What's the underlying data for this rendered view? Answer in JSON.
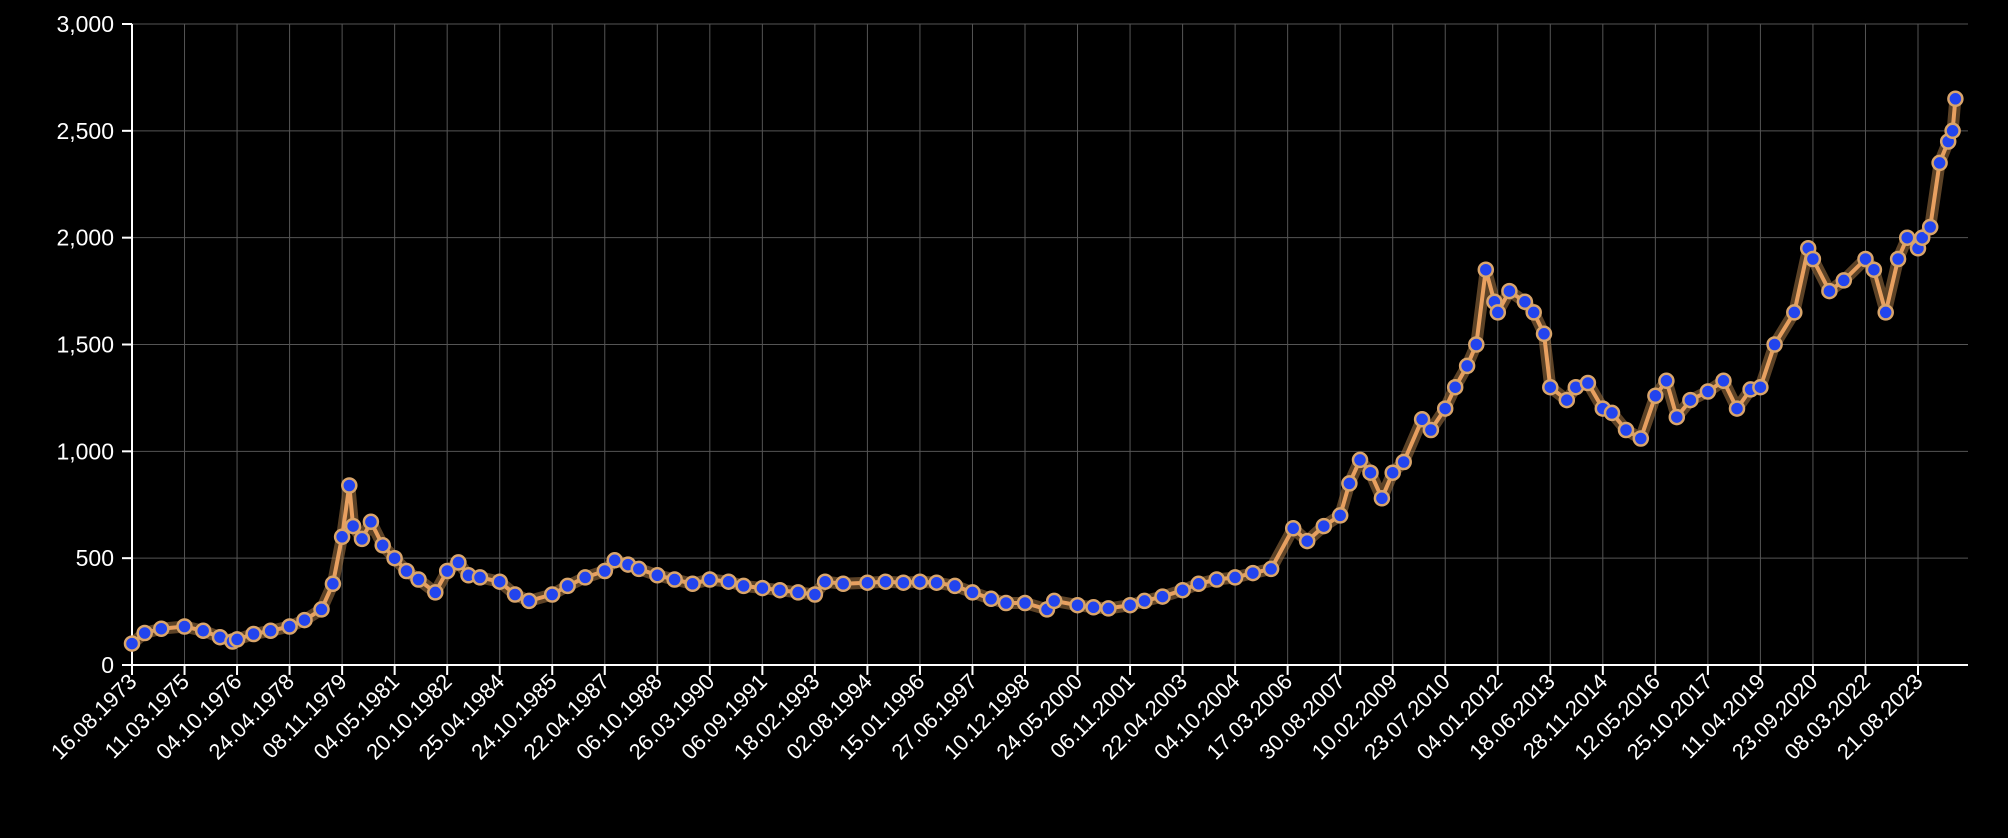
{
  "chart_data": {
    "type": "line",
    "title": "",
    "xlabel": "",
    "ylabel": "",
    "ylim": [
      0,
      3000
    ],
    "grid": true,
    "y_ticks": [
      0,
      500,
      1000,
      1500,
      2000,
      2500,
      3000
    ],
    "y_tick_labels": [
      "0",
      "500",
      "1,000",
      "1,500",
      "2,000",
      "2,500",
      "3,000"
    ],
    "x_tick_labels": [
      "16.08.1973",
      "11.03.1975",
      "04.10.1976",
      "24.04.1978",
      "08.11.1979",
      "04.05.1981",
      "20.10.1982",
      "25.04.1984",
      "24.10.1985",
      "22.04.1987",
      "06.10.1988",
      "26.03.1990",
      "06.09.1991",
      "18.02.1993",
      "02.08.1994",
      "15.01.1996",
      "27.06.1997",
      "10.12.1998",
      "24.05.2000",
      "06.11.2001",
      "22.04.2003",
      "04.10.2004",
      "17.03.2006",
      "30.08.2007",
      "10.02.2009",
      "23.07.2010",
      "04.01.2012",
      "18.06.2013",
      "28.11.2014",
      "12.05.2016",
      "25.10.2017",
      "11.04.2019",
      "23.09.2020",
      "08.03.2022",
      "21.08.2023"
    ],
    "series": [
      {
        "name": "",
        "color": "#e8a060",
        "marker_color": "#2244ee",
        "x": [
          "1973-08-16",
          "1974-01-01",
          "1974-07-01",
          "1975-03-11",
          "1975-10-01",
          "1976-04-01",
          "1976-08-15",
          "1976-10-04",
          "1977-04-01",
          "1977-10-01",
          "1978-04-24",
          "1978-10-01",
          "1979-04-01",
          "1979-08-01",
          "1979-11-08",
          "1980-01-21",
          "1980-03-01",
          "1980-06-01",
          "1980-09-01",
          "1981-01-01",
          "1981-05-04",
          "1981-09-01",
          "1982-01-01",
          "1982-06-21",
          "1982-10-20",
          "1983-02-15",
          "1983-06-01",
          "1983-10-01",
          "1984-04-25",
          "1984-10-01",
          "1985-02-25",
          "1985-10-24",
          "1986-04-01",
          "1986-10-01",
          "1987-04-22",
          "1987-08-01",
          "1987-12-14",
          "1988-04-01",
          "1988-10-06",
          "1989-04-01",
          "1989-10-01",
          "1990-03-26",
          "1990-10-01",
          "1991-03-01",
          "1991-09-06",
          "1992-03-01",
          "1992-09-01",
          "1993-02-18",
          "1993-06-01",
          "1993-12-01",
          "1994-08-02",
          "1995-02-01",
          "1995-08-01",
          "1996-01-15",
          "1996-07-01",
          "1997-01-01",
          "1997-06-27",
          "1998-01-01",
          "1998-06-01",
          "1998-12-10",
          "1999-07-20",
          "1999-10-01",
          "2000-05-24",
          "2000-11-01",
          "2001-04-01",
          "2001-11-06",
          "2002-04-01",
          "2002-10-01",
          "2003-04-22",
          "2003-10-01",
          "2004-04-01",
          "2004-10-04",
          "2005-04-01",
          "2005-10-01",
          "2006-05-12",
          "2006-10-01",
          "2007-03-17",
          "2007-08-30",
          "2007-12-01",
          "2008-03-17",
          "2008-07-01",
          "2008-10-24",
          "2009-02-10",
          "2009-06-01",
          "2009-12-02",
          "2010-03-01",
          "2010-07-23",
          "2010-11-01",
          "2011-03-01",
          "2011-06-01",
          "2011-09-05",
          "2011-12-01",
          "2012-01-04",
          "2012-05-01",
          "2012-10-04",
          "2013-01-01",
          "2013-04-15",
          "2013-06-18",
          "2013-12-01",
          "2014-03-01",
          "2014-07-01",
          "2014-11-28",
          "2015-03-01",
          "2015-07-20",
          "2015-12-17",
          "2016-05-12",
          "2016-09-01",
          "2016-12-15",
          "2017-05-01",
          "2017-10-25",
          "2018-04-01",
          "2018-08-16",
          "2019-01-01",
          "2019-04-11",
          "2019-09-01",
          "2020-03-19",
          "2020-08-06",
          "2020-09-23",
          "2021-03-08",
          "2021-08-01",
          "2022-03-08",
          "2022-06-01",
          "2022-09-28",
          "2023-02-01",
          "2023-05-04",
          "2023-08-21",
          "2023-10-06",
          "2024-01-01",
          "2024-04-12",
          "2024-07-15",
          "2024-09-01",
          "2024-10-01"
        ],
        "y": [
          100,
          150,
          170,
          180,
          160,
          130,
          110,
          120,
          145,
          160,
          180,
          210,
          260,
          380,
          600,
          840,
          650,
          590,
          670,
          560,
          500,
          440,
          400,
          340,
          440,
          480,
          420,
          410,
          390,
          330,
          300,
          330,
          370,
          410,
          440,
          490,
          470,
          450,
          420,
          400,
          380,
          400,
          390,
          370,
          360,
          350,
          340,
          330,
          390,
          380,
          385,
          390,
          385,
          390,
          385,
          370,
          340,
          310,
          290,
          290,
          260,
          300,
          280,
          270,
          265,
          280,
          300,
          320,
          350,
          380,
          400,
          410,
          430,
          450,
          640,
          580,
          650,
          700,
          850,
          960,
          900,
          780,
          900,
          950,
          1150,
          1100,
          1200,
          1300,
          1400,
          1500,
          1850,
          1700,
          1650,
          1750,
          1700,
          1650,
          1550,
          1300,
          1240,
          1300,
          1320,
          1200,
          1180,
          1100,
          1060,
          1260,
          1330,
          1160,
          1240,
          1280,
          1330,
          1200,
          1290,
          1300,
          1500,
          1650,
          1950,
          1900,
          1750,
          1800,
          1900,
          1850,
          1650,
          1900,
          2000,
          1950,
          2000,
          2050,
          2350,
          2450,
          2500,
          2650
        ]
      }
    ]
  }
}
